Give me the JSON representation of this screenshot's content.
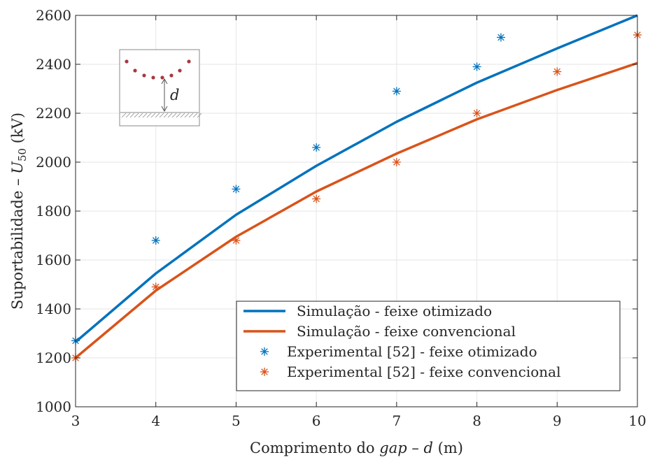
{
  "chart_data": {
    "type": "line",
    "xlabel": "Comprimento do gap – d (m)",
    "xlabel_parts": {
      "prefix": "Comprimento do ",
      "italic1": "gap",
      "mid": " – ",
      "italic2": "d",
      "suffix": " (m)"
    },
    "ylabel": "Suportabilidade – U50 (kV)",
    "ylabel_parts": {
      "prefix": "Suportabilidade – ",
      "italic": "U",
      "sub": "50",
      "suffix": " (kV)"
    },
    "xlim": [
      3,
      10
    ],
    "ylim": [
      1000,
      2600
    ],
    "xticks": [
      3,
      4,
      5,
      6,
      7,
      8,
      9,
      10
    ],
    "yticks": [
      1000,
      1200,
      1400,
      1600,
      1800,
      2000,
      2200,
      2400,
      2600
    ],
    "grid": true,
    "legend_position": "bottom-right",
    "series": [
      {
        "name": "Simulação - feixe otimizado",
        "kind": "line",
        "color": "#0072BD",
        "x": [
          3,
          4,
          5,
          6,
          7,
          8,
          9,
          10
        ],
        "y": [
          1265,
          1545,
          1785,
          1985,
          2165,
          2325,
          2465,
          2600
        ]
      },
      {
        "name": "Simulação - feixe convencional",
        "kind": "line",
        "color": "#D95319",
        "x": [
          3,
          4,
          5,
          6,
          7,
          8,
          9,
          10
        ],
        "y": [
          1200,
          1475,
          1695,
          1880,
          2035,
          2175,
          2295,
          2405
        ]
      },
      {
        "name": "Experimental [52] - feixe otimizado",
        "kind": "scatter",
        "color": "#0072BD",
        "x": [
          3,
          4,
          5,
          6,
          7,
          8,
          8.3
        ],
        "y": [
          1270,
          1680,
          1890,
          2060,
          2290,
          2390,
          2510
        ]
      },
      {
        "name": "Experimental [52] - feixe convencional",
        "kind": "scatter",
        "color": "#D95319",
        "x": [
          3,
          4,
          5,
          6,
          7,
          8,
          9,
          10
        ],
        "y": [
          1200,
          1490,
          1680,
          1850,
          2000,
          2200,
          2370,
          2520
        ]
      }
    ],
    "inset": {
      "label": "d"
    }
  }
}
